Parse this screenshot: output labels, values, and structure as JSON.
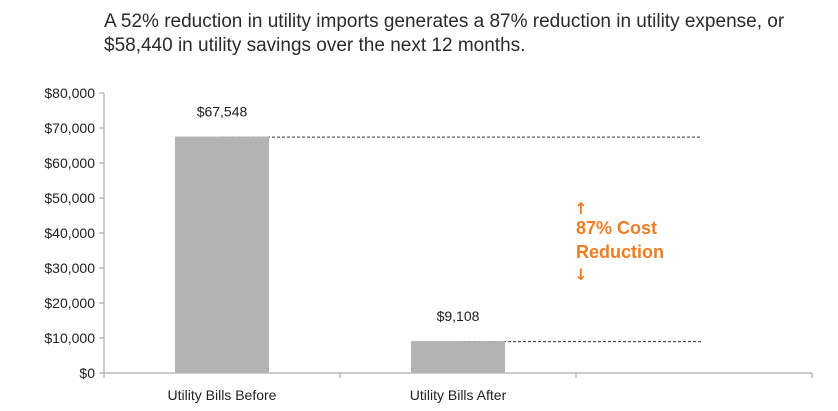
{
  "title": "A 52% reduction in utility imports generates a 87% reduction in utility expense, or $58,440 in utility savings over the next 12 months.",
  "colors": {
    "bar": "#b3b3b3",
    "axis": "#9a9a9a",
    "annotation": "#ef7d22",
    "reference_line": "#333333"
  },
  "chart_data": {
    "type": "bar",
    "title": "A 52% reduction in utility imports generates a 87% reduction in utility expense, or $58,440 in utility savings over the next 12 months.",
    "categories": [
      "Utility Bills Before",
      "Utility Bills After"
    ],
    "values": [
      67548,
      9108
    ],
    "data_labels": [
      "$67,548",
      "$9,108"
    ],
    "ylim": [
      0,
      80000
    ],
    "yticks": [
      0,
      10000,
      20000,
      30000,
      40000,
      50000,
      60000,
      70000,
      80000
    ],
    "ytick_labels": [
      "$0",
      "$10,000",
      "$20,000",
      "$30,000",
      "$40,000",
      "$50,000",
      "$60,000",
      "$70,000",
      "$80,000"
    ],
    "grid": false,
    "legend": "none",
    "annotation": {
      "up_arrow": "↑",
      "line1": "87% Cost",
      "line2": "Reduction",
      "down_arrow": "↓"
    }
  }
}
